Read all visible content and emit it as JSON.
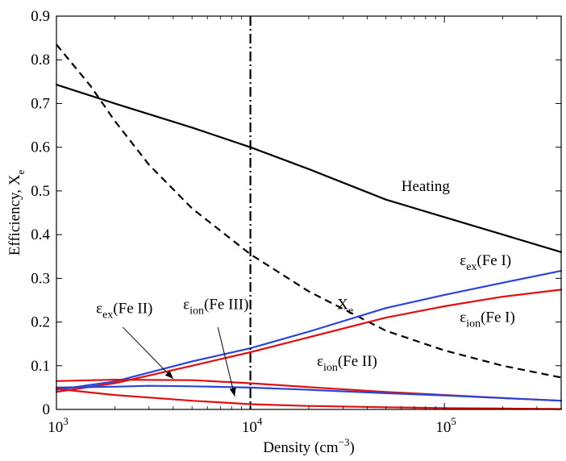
{
  "chart_data": {
    "type": "line",
    "xscale": "log",
    "xlim": [
      1000,
      400000
    ],
    "ylim": [
      0,
      0.9
    ],
    "xlabel": "Density (cm",
    "xlabel_sup": "−3",
    "xlabel_close": ")",
    "ylabel": "Efficiency,  X",
    "ylabel_sub": "e",
    "grid": false,
    "x_ticks": [
      {
        "value": 1000,
        "base": "10",
        "exp": "3"
      },
      {
        "value": 10000,
        "base": "10",
        "exp": "4"
      },
      {
        "value": 100000,
        "base": "10",
        "exp": "5"
      }
    ],
    "y_ticks": [
      {
        "value": 0,
        "label": "0"
      },
      {
        "value": 0.1,
        "label": "0.1"
      },
      {
        "value": 0.2,
        "label": "0.2"
      },
      {
        "value": 0.3,
        "label": "0.3"
      },
      {
        "value": 0.4,
        "label": "0.4"
      },
      {
        "value": 0.5,
        "label": "0.5"
      },
      {
        "value": 0.6,
        "label": "0.6"
      },
      {
        "value": 0.7,
        "label": "0.7"
      },
      {
        "value": 0.8,
        "label": "0.8"
      },
      {
        "value": 0.9,
        "label": "0.9"
      }
    ],
    "vertical_line": {
      "x": 10000,
      "style": "dash-dot",
      "color": "#000000"
    },
    "series": [
      {
        "name": "Heating",
        "color": "#000000",
        "style": "solid",
        "x": [
          1000,
          2000,
          5000,
          10000,
          20000,
          50000,
          100000,
          200000,
          400000
        ],
        "y": [
          0.743,
          0.7,
          0.645,
          0.6,
          0.55,
          0.48,
          0.44,
          0.4,
          0.36
        ]
      },
      {
        "name": "X_e",
        "color": "#000000",
        "style": "dashed",
        "x": [
          1000,
          1500,
          2000,
          3000,
          5000,
          10000,
          20000,
          50000,
          100000,
          200000,
          400000
        ],
        "y": [
          0.835,
          0.74,
          0.66,
          0.56,
          0.46,
          0.355,
          0.27,
          0.18,
          0.135,
          0.1,
          0.073
        ]
      },
      {
        "name": "ε_ex(Fe I)",
        "color": "#2a44d8",
        "style": "solid",
        "x": [
          1000,
          2000,
          5000,
          10000,
          20000,
          50000,
          100000,
          200000,
          400000
        ],
        "y": [
          0.045,
          0.064,
          0.11,
          0.14,
          0.178,
          0.232,
          0.262,
          0.29,
          0.317
        ]
      },
      {
        "name": "ε_ion(Fe I)",
        "color": "#e01010",
        "style": "solid",
        "x": [
          1000,
          2000,
          5000,
          10000,
          20000,
          50000,
          100000,
          200000,
          400000
        ],
        "y": [
          0.04,
          0.06,
          0.1,
          0.131,
          0.165,
          0.21,
          0.236,
          0.258,
          0.274
        ]
      },
      {
        "name": "ε_ion(Fe II)",
        "color": "#e01010",
        "style": "solid",
        "x": [
          1000,
          2000,
          5000,
          10000,
          20000,
          50000,
          100000,
          200000,
          400000
        ],
        "y": [
          0.065,
          0.068,
          0.067,
          0.06,
          0.051,
          0.04,
          0.033,
          0.026,
          0.02
        ]
      },
      {
        "name": "ε_ex(Fe II)",
        "color": "#2a44d8",
        "style": "solid",
        "x": [
          1000,
          2000,
          3000,
          5000,
          10000,
          20000,
          50000,
          100000,
          200000,
          400000
        ],
        "y": [
          0.05,
          0.052,
          0.054,
          0.053,
          0.05,
          0.045,
          0.037,
          0.032,
          0.026,
          0.02
        ]
      },
      {
        "name": "ε_ion(Fe III)",
        "color": "#e01010",
        "style": "solid",
        "x": [
          1000,
          2000,
          5000,
          10000,
          20000,
          50000,
          100000,
          200000,
          400000
        ],
        "y": [
          0.047,
          0.033,
          0.02,
          0.012,
          0.008,
          0.005,
          0.003,
          0.002,
          0.001
        ]
      }
    ],
    "annotations": [
      {
        "id": "heating",
        "parts": [
          {
            "t": "Heating",
            "s": ""
          }
        ],
        "x": 60000,
        "y": 0.5
      },
      {
        "id": "xe",
        "parts": [
          {
            "t": "X",
            "s": ""
          },
          {
            "t": "e",
            "s": "sub"
          }
        ],
        "x": 28000,
        "y": 0.23
      },
      {
        "id": "ex-fe1",
        "parts": [
          {
            "t": "ε",
            "s": ""
          },
          {
            "t": "ex",
            "s": "sub"
          },
          {
            "t": "(Fe I)",
            "s": ""
          }
        ],
        "x": 120000,
        "y": 0.33
      },
      {
        "id": "ion-fe1",
        "parts": [
          {
            "t": "ε",
            "s": ""
          },
          {
            "t": "ion",
            "s": "sub"
          },
          {
            "t": "(Fe I)",
            "s": ""
          }
        ],
        "x": 120000,
        "y": 0.2
      },
      {
        "id": "ion-fe2",
        "parts": [
          {
            "t": "ε",
            "s": ""
          },
          {
            "t": "ion",
            "s": "sub"
          },
          {
            "t": "(Fe II)",
            "s": ""
          }
        ],
        "x": 22000,
        "y": 0.1
      },
      {
        "id": "ex-fe2",
        "parts": [
          {
            "t": "ε",
            "s": ""
          },
          {
            "t": "ex",
            "s": "sub"
          },
          {
            "t": "(Fe II)",
            "s": ""
          }
        ],
        "x": 1600,
        "y": 0.22
      },
      {
        "id": "ion-fe3",
        "parts": [
          {
            "t": "ε",
            "s": ""
          },
          {
            "t": "ion",
            "s": "sub"
          },
          {
            "t": "(Fe III)",
            "s": ""
          }
        ],
        "x": 4500,
        "y": 0.23
      }
    ],
    "arrows": [
      {
        "id": "ex-fe2",
        "from": [
          2200,
          0.188
        ],
        "to": [
          4000,
          0.07
        ]
      },
      {
        "id": "ion-fe3",
        "from": [
          6800,
          0.188
        ],
        "to": [
          8300,
          0.03
        ]
      }
    ]
  }
}
